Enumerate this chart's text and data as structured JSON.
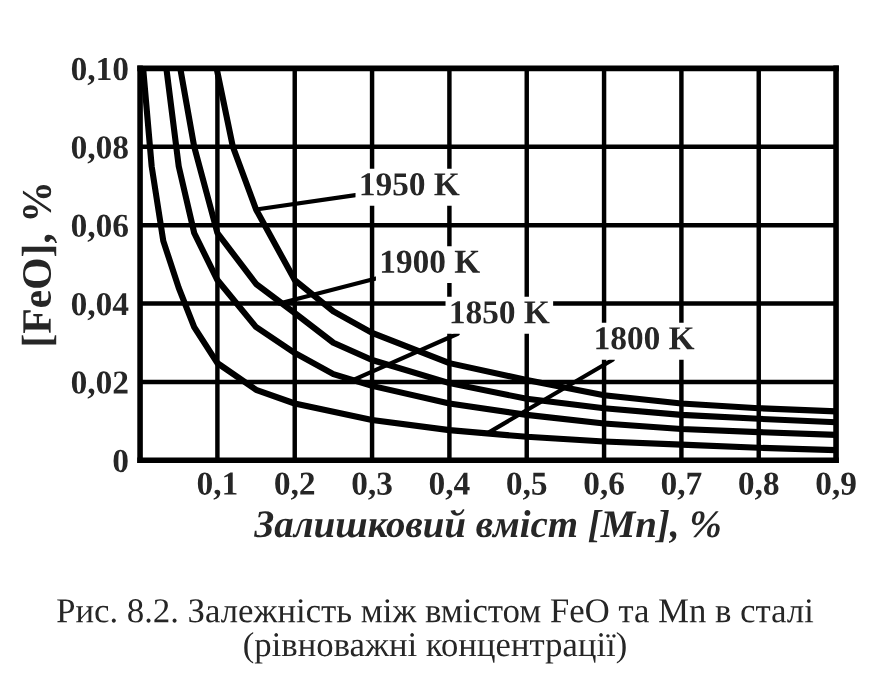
{
  "chart_data": {
    "type": "line",
    "xlabel": "Залишковий вміст [Mn], %",
    "ylabel": "[FeO], %",
    "series": [
      {
        "color": "#000000",
        "x": [
          0.099,
          0.12,
          0.15,
          0.2,
          0.25,
          0.3,
          0.4,
          0.5,
          0.6,
          0.7,
          0.8,
          0.9
        ],
        "values": [
          0.1,
          0.08,
          0.064,
          0.046,
          0.038,
          0.0325,
          0.0248,
          0.0205,
          0.0166,
          0.0145,
          0.0133,
          0.0125
        ]
      },
      {
        "color": "#000000",
        "x": [
          0.052,
          0.07,
          0.1,
          0.15,
          0.2,
          0.25,
          0.3,
          0.4,
          0.5,
          0.6,
          0.7,
          0.8,
          0.9
        ],
        "values": [
          0.1,
          0.08,
          0.058,
          0.045,
          0.0376,
          0.03,
          0.0256,
          0.0197,
          0.0157,
          0.0133,
          0.0116,
          0.0106,
          0.0097
        ]
      },
      {
        "color": "#000000",
        "x": [
          0.034,
          0.05,
          0.07,
          0.1,
          0.15,
          0.2,
          0.25,
          0.3,
          0.4,
          0.5,
          0.6,
          0.7,
          0.8,
          0.9
        ],
        "values": [
          0.1,
          0.075,
          0.058,
          0.046,
          0.034,
          0.0274,
          0.022,
          0.019,
          0.0145,
          0.0116,
          0.0094,
          0.008,
          0.0072,
          0.0065
        ]
      },
      {
        "color": "#000000",
        "x": [
          0.004,
          0.015,
          0.03,
          0.05,
          0.07,
          0.1,
          0.15,
          0.2,
          0.3,
          0.4,
          0.5,
          0.6,
          0.7,
          0.8,
          0.9
        ],
        "values": [
          0.1,
          0.075,
          0.056,
          0.044,
          0.034,
          0.0248,
          0.018,
          0.0145,
          0.0103,
          0.0077,
          0.006,
          0.0048,
          0.004,
          0.0032,
          0.0026
        ]
      }
    ],
    "xlim": [
      0,
      0.9
    ],
    "xticks": [
      {
        "value": 0.1,
        "label": "0,1"
      },
      {
        "value": 0.2,
        "label": "0,2"
      },
      {
        "value": 0.3,
        "label": "0,3"
      },
      {
        "value": 0.4,
        "label": "0,4"
      },
      {
        "value": 0.5,
        "label": "0,5"
      },
      {
        "value": 0.6,
        "label": "0,6"
      },
      {
        "value": 0.7,
        "label": "0,7"
      },
      {
        "value": 0.8,
        "label": "0,8"
      },
      {
        "value": 0.9,
        "label": "0,9"
      }
    ],
    "ylim": [
      0,
      0.1
    ],
    "yticks": [
      0,
      {
        "value": 0.02,
        "label": "0,02"
      },
      {
        "value": 0.04,
        "label": "0,04"
      },
      {
        "value": 0.06,
        "label": "0,06"
      },
      {
        "value": 0.08,
        "label": "0,08"
      },
      {
        "value": 0.1,
        "label": "0,10"
      }
    ],
    "grid": true,
    "legend": false,
    "marker": "none",
    "line_style": "solid",
    "annotations": [
      {
        "text": "1950 K",
        "x": 0.15,
        "y": 0.064
      },
      {
        "text": "1900 K",
        "x": 0.18,
        "y": 0.04
      },
      {
        "text": "1850 K",
        "x": 0.27,
        "y": 0.02
      },
      {
        "text": "1800 K",
        "x": 0.45,
        "y": 0.007
      },
      "Рис. 8.2. Залежність між вмістом FeO та Mn в сталі\n(рівноважні концентрації)"
    ]
  }
}
